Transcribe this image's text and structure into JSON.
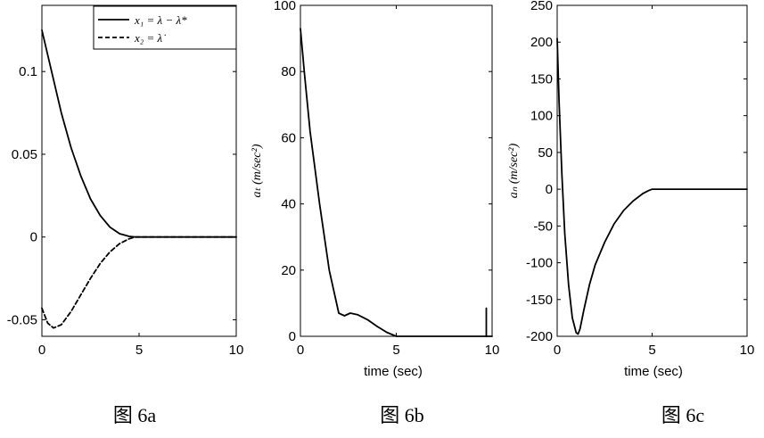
{
  "chart_data": [
    {
      "type": "line",
      "caption": "图 6a",
      "xlabel": "",
      "ylabel": "",
      "xlim": [
        0,
        10
      ],
      "ylim": [
        -0.06,
        0.14
      ],
      "xticks": [
        0,
        5,
        10
      ],
      "xtick_labels": [
        "0",
        "5",
        "10"
      ],
      "yticks": [
        -0.05,
        0,
        0.05,
        0.1
      ],
      "ytick_labels": [
        "-0.05",
        "0",
        "0.05",
        "0.1"
      ],
      "grid": false,
      "legend_position": "top-right",
      "series": [
        {
          "name": "x₁ = λ − λ*",
          "style": "solid",
          "x": [
            0,
            0.5,
            1,
            1.5,
            2,
            2.5,
            3,
            3.5,
            4,
            4.5,
            4.8,
            5,
            6,
            7,
            8,
            9,
            10
          ],
          "y": [
            0.125,
            0.1,
            0.075,
            0.054,
            0.037,
            0.023,
            0.013,
            0.006,
            0.002,
            0.0004,
            0,
            0,
            0,
            0,
            0,
            0,
            0
          ]
        },
        {
          "name": "x₂ = λ̇",
          "style": "dashed",
          "x": [
            0,
            0.3,
            0.6,
            1,
            1.5,
            2,
            2.5,
            3,
            3.5,
            4,
            4.5,
            4.8,
            5,
            6,
            7,
            8,
            9,
            10
          ],
          "y": [
            -0.043,
            -0.052,
            -0.055,
            -0.053,
            -0.045,
            -0.035,
            -0.025,
            -0.016,
            -0.009,
            -0.004,
            -0.001,
            0,
            0,
            0,
            0,
            0,
            0,
            0
          ]
        }
      ]
    },
    {
      "type": "line",
      "caption": "图 6b",
      "xlabel": "time (sec)",
      "ylabel": "aₜ (m/sec²)",
      "xlim": [
        0,
        10
      ],
      "ylim": [
        0,
        100
      ],
      "xticks": [
        0,
        5,
        10
      ],
      "xtick_labels": [
        "0",
        "5",
        "10"
      ],
      "yticks": [
        0,
        20,
        40,
        60,
        80,
        100
      ],
      "ytick_labels": [
        "0",
        "20",
        "40",
        "60",
        "80",
        "100"
      ],
      "grid": false,
      "series": [
        {
          "x": [
            0,
            0.2,
            0.5,
            1,
            1.5,
            2,
            2.3,
            2.6,
            3,
            3.5,
            4,
            4.5,
            5,
            5.5,
            10
          ],
          "y": [
            93,
            80,
            62,
            40,
            20,
            7,
            6.2,
            7,
            6.5,
            5,
            3,
            1.2,
            0,
            0,
            0
          ]
        },
        {
          "x": [
            9.7,
            9.7
          ],
          "y": [
            0,
            8.5
          ]
        }
      ]
    },
    {
      "type": "line",
      "caption": "图 6c",
      "xlabel": "time (sec)",
      "ylabel": "aₙ (m/sec²)",
      "xlim": [
        0,
        10
      ],
      "ylim": [
        -200,
        250
      ],
      "xticks": [
        0,
        5,
        10
      ],
      "xtick_labels": [
        "0",
        "5",
        "10"
      ],
      "yticks": [
        -200,
        -150,
        -100,
        -50,
        0,
        50,
        100,
        150,
        200,
        250
      ],
      "ytick_labels": [
        "-200",
        "-150",
        "-100",
        "-50",
        "0",
        "50",
        "100",
        "150",
        "200",
        "250"
      ],
      "grid": false,
      "series": [
        {
          "x": [
            0,
            0.1,
            0.25,
            0.4,
            0.6,
            0.8,
            1,
            1.1,
            1.2,
            1.4,
            1.7,
            2,
            2.5,
            3,
            3.5,
            4,
            4.5,
            4.8,
            5,
            6,
            7,
            8,
            9,
            10
          ],
          "y": [
            205,
            120,
            20,
            -60,
            -130,
            -175,
            -195,
            -197,
            -190,
            -165,
            -130,
            -103,
            -72,
            -47,
            -29,
            -16,
            -6,
            -2,
            0,
            0,
            0,
            0,
            0,
            0
          ]
        }
      ]
    }
  ]
}
